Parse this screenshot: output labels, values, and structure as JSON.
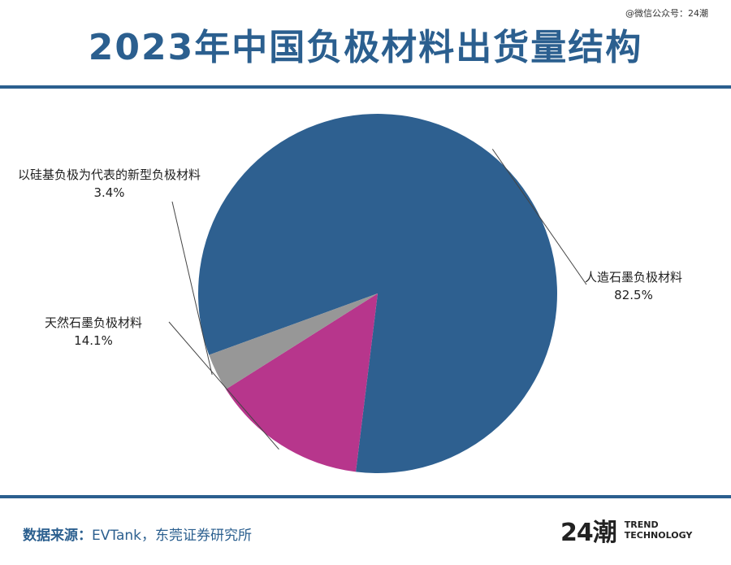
{
  "watermark": "@微信公众号：24潮",
  "title": "2023年中国负极材料出货量结构",
  "chart_data": {
    "type": "pie",
    "title": "2023年中国负极材料出货量结构",
    "slices": [
      {
        "name": "人造石墨负极材料",
        "value": 82.5,
        "label": "82.5%",
        "color": "#2e6090"
      },
      {
        "name": "天然石墨负极材料",
        "value": 14.1,
        "label": "14.1%",
        "color": "#b7368c"
      },
      {
        "name": "以硅基负极为代表的新型负极材料",
        "value": 3.4,
        "label": "3.4%",
        "color": "#979797"
      }
    ]
  },
  "footer": {
    "source_label": "数据来源：",
    "source_text": "EVTank，东莞证券研究所"
  },
  "logo": {
    "mark": "24潮",
    "line1": "TREND",
    "line2": "TECHNOLOGY"
  }
}
